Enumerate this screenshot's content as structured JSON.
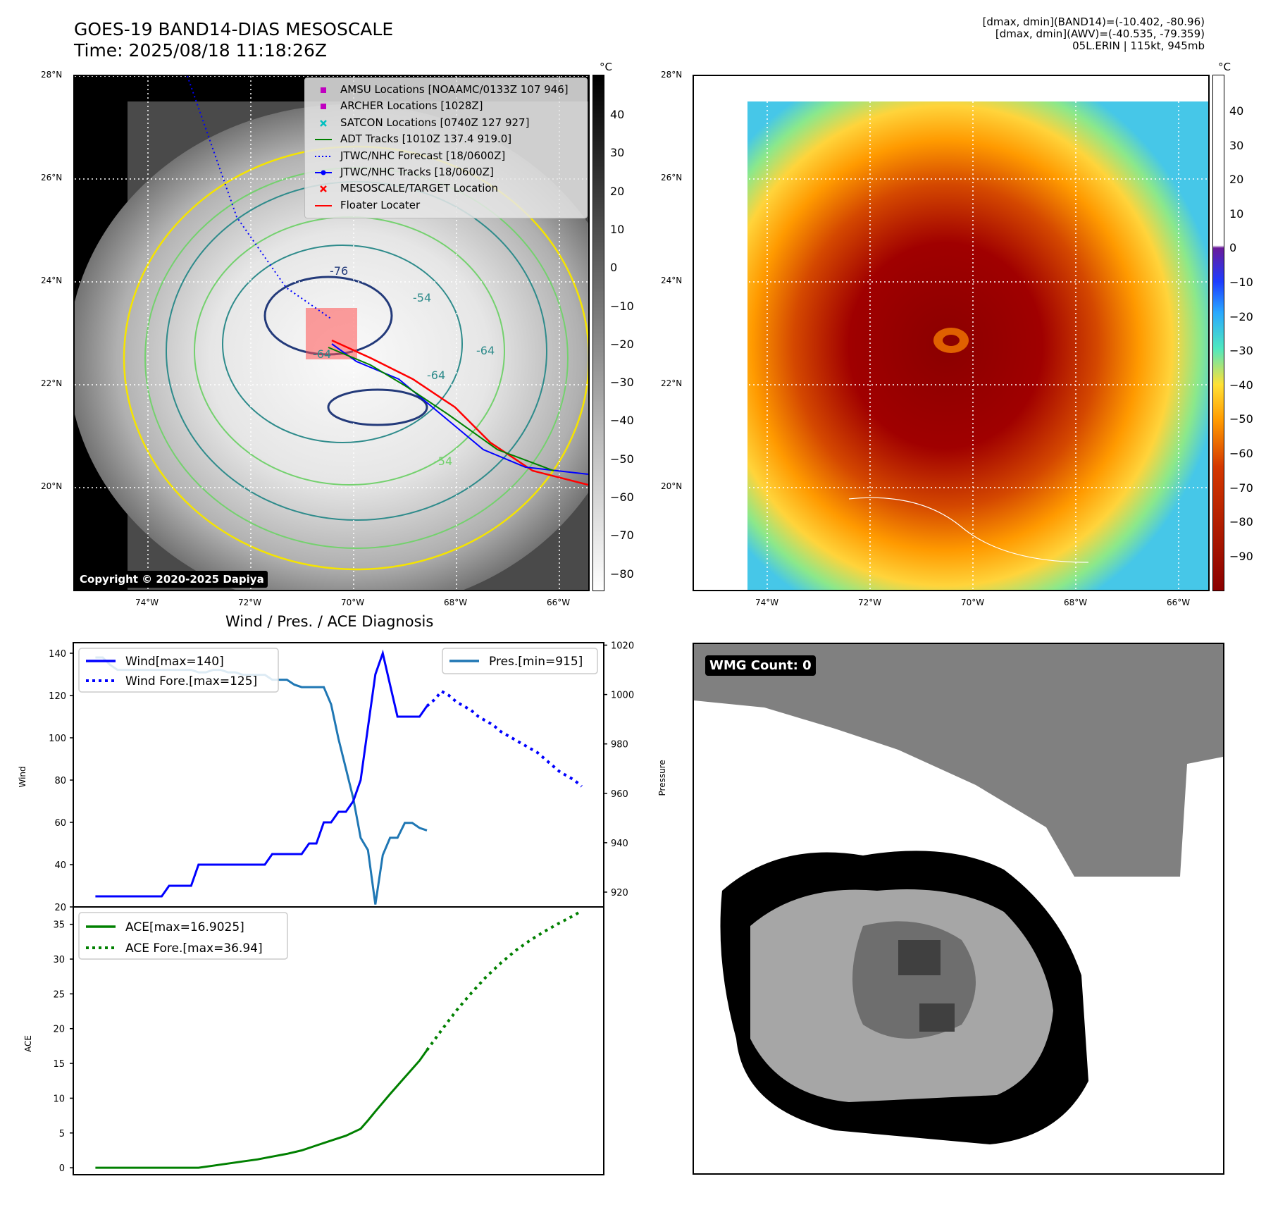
{
  "header": {
    "title_line1": "GOES-19 BAND14-DIAS MESOSCALE",
    "title_line2": "Time: 2025/08/18 11:18:26Z",
    "info_line1": "[dmax, dmin](BAND14)=(-10.402, -80.96)",
    "info_line2": "[dmax, dmin](AWV)=(-40.535, -79.359)",
    "info_line3": "05L.ERIN | 115kt, 945mb"
  },
  "map": {
    "lat_labels": [
      "28°N",
      "26°N",
      "24°N",
      "22°N",
      "20°N"
    ],
    "lon_labels": [
      "74°W",
      "72°W",
      "70°W",
      "68°W",
      "66°W"
    ],
    "contour_labels": [
      "-76",
      "-64",
      "-54",
      "-64",
      "-64",
      "-54"
    ],
    "copyright": "Copyright © 2020-2025 Dapiya"
  },
  "colorbar_left": {
    "unit": "°C",
    "ticks": [
      "40",
      "30",
      "20",
      "10",
      "0",
      "−10",
      "−20",
      "−30",
      "−40",
      "−50",
      "−60",
      "−70",
      "−80"
    ]
  },
  "colorbar_right": {
    "unit": "°C",
    "ticks": [
      "40",
      "30",
      "20",
      "10",
      "0",
      "−10",
      "−20",
      "−30",
      "−40",
      "−50",
      "−60",
      "−70",
      "−80",
      "−90"
    ]
  },
  "legend_map": [
    {
      "label": "AMSU Locations [NOAAMC/0133Z 107 946]",
      "marker": "square",
      "color": "#c000c0"
    },
    {
      "label": "ARCHER Locations [1028Z]",
      "marker": "square",
      "color": "#c000c0"
    },
    {
      "label": "SATCON Locations [0740Z 127 927]",
      "marker": "x",
      "color": "#00bfbf"
    },
    {
      "label": "ADT Tracks [1010Z 137.4 919.0]",
      "marker": "line",
      "color": "#008000"
    },
    {
      "label": "JTWC/NHC Forecast [18/0600Z]",
      "marker": "dotted",
      "color": "#0000ff"
    },
    {
      "label": "JTWC/NHC Tracks [18/0600Z]",
      "marker": "line-dot",
      "color": "#0000ff"
    },
    {
      "label": "MESOSCALE/TARGET Location",
      "marker": "x",
      "color": "#ff0000"
    },
    {
      "label": "Floater Locater",
      "marker": "line",
      "color": "#ff0000"
    }
  ],
  "diagnosis": {
    "title": "Wind / Pres. / ACE Diagnosis",
    "wind_ylabel": "Wind",
    "pres_ylabel": "Pressure",
    "ace_ylabel": "ACE",
    "wind_ticks": [
      "140",
      "120",
      "100",
      "80",
      "60",
      "40",
      "20"
    ],
    "pres_ticks": [
      "1020",
      "1000",
      "980",
      "960",
      "940",
      "920"
    ],
    "ace_ticks": [
      "35",
      "30",
      "25",
      "20",
      "15",
      "10",
      "5",
      "0"
    ],
    "legend_wind": "Wind[max=140]",
    "legend_wind_fore": "Wind Fore.[max=125]",
    "legend_pres": "Pres.[min=915]",
    "legend_ace": "ACE[max=16.9025]",
    "legend_ace_fore": "ACE Fore.[max=36.94]"
  },
  "wmg": {
    "label": "WMG Count: 0"
  },
  "chart_data": [
    {
      "type": "line",
      "title": "Wind / Pres. / ACE Diagnosis",
      "ylabel": "Wind",
      "ylim": [
        20,
        145
      ],
      "series": [
        {
          "name": "Wind[max=140]",
          "color": "#0000ff",
          "style": "solid",
          "x": [
            0,
            1,
            2,
            3,
            4,
            5,
            6,
            7,
            8,
            9,
            10,
            11,
            12,
            13,
            14,
            15,
            16,
            17,
            18,
            19,
            20,
            21,
            22,
            23,
            24,
            25,
            26,
            27,
            28,
            29,
            30,
            31,
            32,
            33,
            34,
            35,
            36,
            37,
            38,
            39,
            40,
            41,
            42,
            43,
            44,
            45
          ],
          "values": [
            25,
            25,
            25,
            25,
            25,
            25,
            25,
            25,
            25,
            25,
            30,
            30,
            30,
            30,
            40,
            40,
            40,
            40,
            40,
            40,
            40,
            40,
            40,
            40,
            45,
            45,
            45,
            45,
            45,
            50,
            50,
            60,
            60,
            65,
            65,
            70,
            80,
            105,
            130,
            140,
            125,
            110,
            110,
            110,
            110,
            115
          ]
        },
        {
          "name": "Wind Fore.[max=125]",
          "color": "#0000ff",
          "style": "dotted",
          "x": [
            45,
            46,
            47,
            48,
            49,
            50,
            51,
            52,
            53,
            54,
            55,
            56,
            57,
            58,
            59,
            60,
            61,
            62,
            63,
            64,
            65,
            66
          ],
          "values": [
            115,
            118,
            122,
            120,
            117,
            115,
            113,
            110,
            108,
            106,
            103,
            101,
            99,
            97,
            95,
            93,
            90,
            87,
            84,
            82,
            80,
            77
          ]
        }
      ]
    },
    {
      "type": "line",
      "ylabel": "Pressure",
      "ylim": [
        914,
        1021
      ],
      "series": [
        {
          "name": "Pres.[min=915]",
          "color": "#1f77b4",
          "style": "solid",
          "x": [
            0,
            1,
            2,
            3,
            4,
            5,
            6,
            7,
            8,
            9,
            10,
            11,
            12,
            13,
            14,
            15,
            16,
            17,
            18,
            19,
            20,
            21,
            22,
            23,
            24,
            25,
            26,
            27,
            28,
            29,
            30,
            31,
            32,
            33,
            34,
            35,
            36,
            37,
            38,
            39,
            40,
            41,
            42,
            43,
            44,
            45
          ],
          "values": [
            1015,
            1015,
            1012,
            1010,
            1010,
            1010,
            1010,
            1010,
            1010,
            1010,
            1010,
            1010,
            1010,
            1010,
            1009,
            1009,
            1010,
            1010,
            1009,
            1009,
            1008,
            1008,
            1008,
            1008,
            1006,
            1006,
            1006,
            1004,
            1003,
            1003,
            1003,
            1003,
            996,
            982,
            970,
            958,
            942,
            937,
            915,
            935,
            942,
            942,
            948,
            948,
            946,
            945
          ]
        }
      ]
    },
    {
      "type": "line",
      "ylabel": "ACE",
      "ylim": [
        -1,
        37.5
      ],
      "series": [
        {
          "name": "ACE[max=16.9025]",
          "color": "#008000",
          "style": "solid",
          "x": [
            0,
            2,
            4,
            6,
            8,
            10,
            12,
            14,
            16,
            18,
            20,
            22,
            24,
            26,
            28,
            30,
            32,
            34,
            36,
            37,
            38,
            40,
            42,
            44,
            45
          ],
          "values": [
            0,
            0,
            0,
            0,
            0,
            0,
            0,
            0,
            0.3,
            0.6,
            0.9,
            1.2,
            1.6,
            2.0,
            2.5,
            3.2,
            3.9,
            4.6,
            5.6,
            6.8,
            8.1,
            10.6,
            13.0,
            15.4,
            16.9
          ]
        },
        {
          "name": "ACE Fore.[max=36.94]",
          "color": "#008000",
          "style": "dotted",
          "x": [
            45,
            47,
            49,
            51,
            53,
            55,
            57,
            59,
            61,
            63,
            65,
            66
          ],
          "values": [
            16.9,
            19.8,
            22.6,
            25.1,
            27.4,
            29.4,
            31.2,
            32.7,
            34.0,
            35.2,
            36.3,
            36.94
          ]
        }
      ]
    }
  ]
}
